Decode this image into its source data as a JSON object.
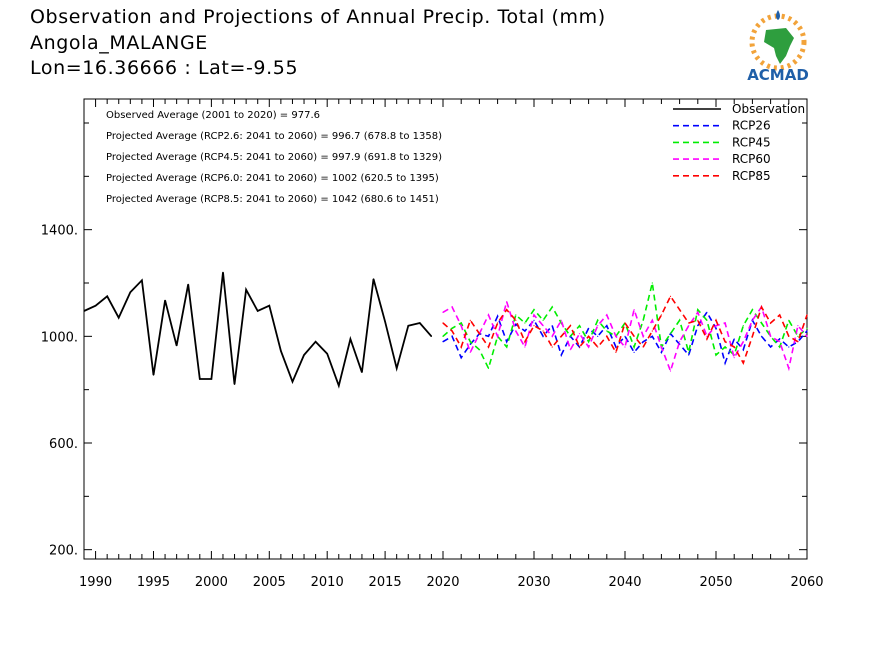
{
  "header": {
    "title": "Observation and Projections of Annual Precip. Total (mm)",
    "region": "Angola_MALANGE",
    "coords": "Lon=16.36666 : Lat=-9.55"
  },
  "logo": {
    "text": "ACMAD",
    "colors": {
      "africa": "#2e9e3e",
      "text": "#1f5fa8",
      "sun": "#f2a33a"
    }
  },
  "colors": {
    "Observation": "#000000",
    "RCP26": "#0000ff",
    "RCP45": "#00ee00",
    "RCP60": "#ff00ff",
    "RCP85": "#ff0000"
  },
  "chart_data": {
    "type": "line",
    "xlim": [
      1989,
      2060
    ],
    "ylim": [
      165,
      1890
    ],
    "x_ticks": [
      1990,
      1995,
      2000,
      2005,
      2010,
      2015,
      2020,
      2030,
      2040,
      2050,
      2060
    ],
    "y_ticks": [
      200,
      600,
      1000,
      1400
    ],
    "y_tick_labels": [
      "200.",
      "600.",
      "1000.",
      "1400."
    ],
    "legend_position": "top-right",
    "annotations": [
      "Observed Average (2001 to 2020) = 977.6",
      "Projected Average (RCP2.6: 2041 to 2060) = 996.7 (678.8 to 1358)",
      "Projected Average (RCP4.5: 2041 to 2060) = 997.9 (691.8 to 1329)",
      "Projected Average (RCP6.0: 2041 to 2060) = 1002 (620.5 to 1395)",
      "Projected Average (RCP8.5: 2041 to 2060) = 1042 (680.6 to 1451)"
    ],
    "series": [
      {
        "name": "Observation",
        "style": "solid",
        "color": "#000000",
        "x": [
          1989,
          1990,
          1991,
          1992,
          1993,
          1994,
          1995,
          1996,
          1997,
          1998,
          1999,
          2000,
          2001,
          2002,
          2003,
          2004,
          2005,
          2006,
          2007,
          2008,
          2009,
          2010,
          2011,
          2012,
          2013,
          2014,
          2015,
          2016,
          2017,
          2018,
          2019
        ],
        "values": [
          1095,
          1115,
          1150,
          1070,
          1165,
          1210,
          855,
          1135,
          965,
          1195,
          840,
          840,
          1240,
          820,
          1175,
          1095,
          1115,
          945,
          830,
          930,
          980,
          935,
          815,
          990,
          865,
          1215,
          1055,
          880,
          1040,
          1050,
          1000
        ]
      },
      {
        "name": "RCP26",
        "style": "dashed",
        "color": "#0000ff",
        "x": [
          2020,
          2021,
          2022,
          2023,
          2024,
          2025,
          2026,
          2027,
          2028,
          2029,
          2030,
          2031,
          2032,
          2033,
          2034,
          2035,
          2036,
          2037,
          2038,
          2039,
          2040,
          2041,
          2042,
          2043,
          2044,
          2045,
          2046,
          2047,
          2048,
          2049,
          2050,
          2051,
          2052,
          2053,
          2054,
          2055,
          2056,
          2057,
          2058,
          2059,
          2060
        ],
        "values": [
          980,
          1000,
          920,
          970,
          1010,
          1000,
          1075,
          980,
          1045,
          1020,
          1060,
          1000,
          1040,
          930,
          1000,
          960,
          1030,
          1000,
          1040,
          960,
          1000,
          940,
          980,
          1000,
          940,
          1010,
          970,
          930,
          1040,
          1090,
          1030,
          900,
          990,
          950,
          1060,
          1000,
          960,
          990,
          960,
          980,
          1020
        ]
      },
      {
        "name": "RCP45",
        "style": "dashed",
        "color": "#00ee00",
        "x": [
          2020,
          2021,
          2022,
          2023,
          2024,
          2025,
          2026,
          2027,
          2028,
          2029,
          2030,
          2031,
          2032,
          2033,
          2034,
          2035,
          2036,
          2037,
          2038,
          2039,
          2040,
          2041,
          2042,
          2043,
          2044,
          2045,
          2046,
          2047,
          2048,
          2049,
          2050,
          2051,
          2052,
          2053,
          2054,
          2055,
          2056,
          2057,
          2058,
          2059,
          2060
        ],
        "values": [
          1000,
          1030,
          1050,
          980,
          950,
          880,
          1000,
          960,
          1080,
          1050,
          1100,
          1060,
          1110,
          1050,
          1000,
          1040,
          980,
          1060,
          1020,
          1000,
          1050,
          960,
          1060,
          1200,
          960,
          1010,
          1060,
          940,
          1100,
          1060,
          930,
          960,
          930,
          1040,
          1100,
          1050,
          1000,
          960,
          1060,
          1000,
          1030
        ]
      },
      {
        "name": "RCP60",
        "style": "dashed",
        "color": "#ff00ff",
        "x": [
          2020,
          2021,
          2022,
          2023,
          2024,
          2025,
          2026,
          2027,
          2028,
          2029,
          2030,
          2031,
          2032,
          2033,
          2034,
          2035,
          2036,
          2037,
          2038,
          2039,
          2040,
          2041,
          2042,
          2043,
          2044,
          2045,
          2046,
          2047,
          2048,
          2049,
          2050,
          2051,
          2052,
          2053,
          2054,
          2055,
          2056,
          2057,
          2058,
          2059,
          2060
        ],
        "values": [
          1090,
          1110,
          1040,
          940,
          1010,
          1080,
          1000,
          1130,
          1020,
          960,
          1080,
          1040,
          1000,
          1060,
          950,
          1010,
          960,
          1040,
          1080,
          1000,
          960,
          1100,
          1000,
          1060,
          960,
          870,
          980,
          1040,
          1090,
          1000,
          1040,
          1050,
          920,
          980,
          1060,
          1110,
          1000,
          980,
          880,
          1040,
          1000
        ]
      },
      {
        "name": "RCP85",
        "style": "dashed",
        "color": "#ff0000",
        "x": [
          2020,
          2021,
          2022,
          2023,
          2024,
          2025,
          2026,
          2027,
          2028,
          2029,
          2030,
          2031,
          2032,
          2033,
          2034,
          2035,
          2036,
          2037,
          2038,
          2039,
          2040,
          2041,
          2042,
          2043,
          2044,
          2045,
          2046,
          2047,
          2048,
          2049,
          2050,
          2051,
          2052,
          2053,
          2054,
          2055,
          2056,
          2057,
          2058,
          2059,
          2060
        ],
        "values": [
          1050,
          1020,
          960,
          1060,
          1010,
          960,
          1050,
          1100,
          1060,
          980,
          1040,
          1020,
          960,
          1000,
          1040,
          960,
          1000,
          960,
          1000,
          940,
          1050,
          1000,
          960,
          1020,
          1080,
          1150,
          1100,
          1050,
          1060,
          990,
          1060,
          980,
          960,
          900,
          1000,
          1110,
          1050,
          1080,
          1000,
          980,
          1080
        ]
      }
    ]
  }
}
